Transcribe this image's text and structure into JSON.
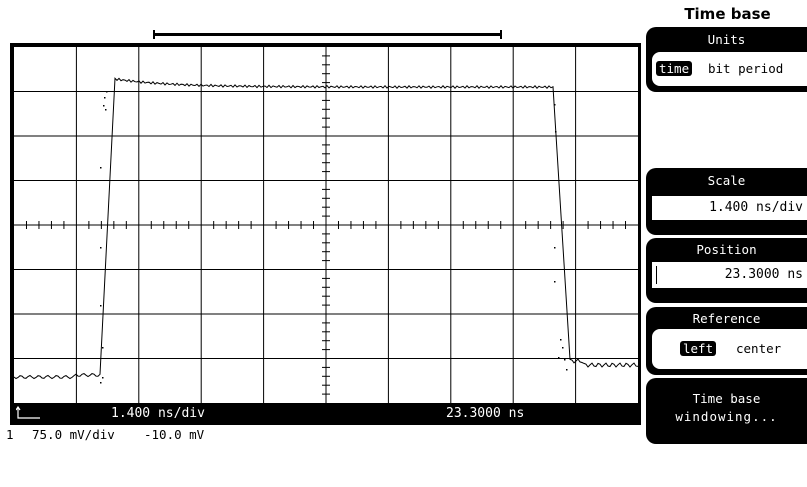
{
  "menu": {
    "title": "Time base",
    "units": {
      "label": "Units",
      "selected": "time",
      "other": "bit period"
    },
    "scale": {
      "label": "Scale",
      "value": "1.400 ns/div"
    },
    "position": {
      "label": "Position",
      "value": "23.3000 ns"
    },
    "reference": {
      "label": "Reference",
      "selected": "left",
      "other": "center"
    },
    "windowing": {
      "line1": "Time base",
      "line2": "windowing..."
    }
  },
  "status": {
    "scale": "1.400 ns/div",
    "position": "23.3000 ns"
  },
  "channel": {
    "number": "1",
    "scale": "75.0 mV/div",
    "offset": "-10.0 mV"
  },
  "colors": {
    "screen_bg": "#000000",
    "graticule": "#ffffff",
    "trace": "#000000"
  }
}
